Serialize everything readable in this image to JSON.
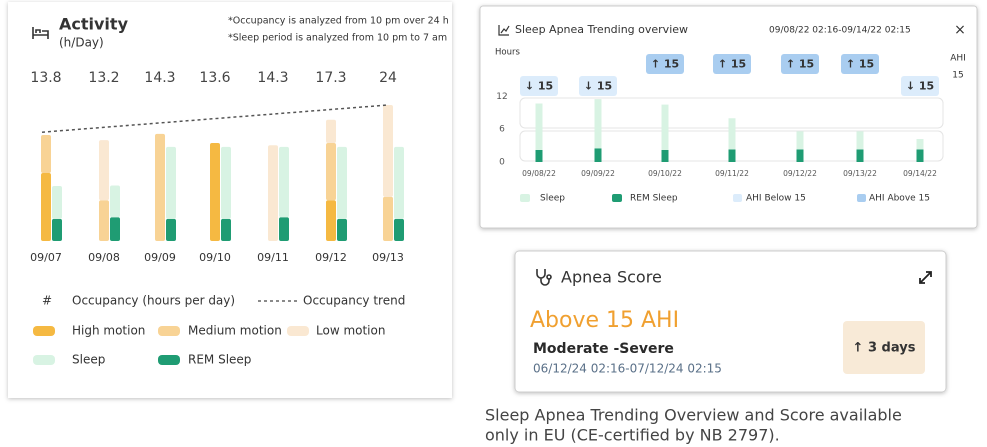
{
  "activity": {
    "title": "Activity",
    "subtitle": "(h/Day)",
    "notes": [
      "*Occupancy is analyzed from 10 pm over 24 h",
      "*Sleep period is analyzed from 10 pm to 7 am"
    ],
    "categories": [
      "09/07",
      "09/08",
      "09/09",
      "09/10",
      "09/11",
      "09/12",
      "09/13"
    ],
    "occupancy": {
      "marker": "#",
      "name": "Occupancy (hours per day)",
      "values": [
        13.8,
        13.2,
        14.3,
        13.6,
        14.3,
        17.3,
        24
      ]
    },
    "trend": {
      "name": "Occupancy trend",
      "values": [
        19.2,
        24
      ]
    },
    "ylim": [
      0,
      24
    ],
    "series": [
      {
        "name": "High motion",
        "stack": "occupancy",
        "color": "#f5b942",
        "values": [
          12.0,
          0,
          0,
          17.3,
          0,
          7.2,
          0
        ]
      },
      {
        "name": "Medium motion",
        "stack": "occupancy",
        "color": "#f8d395",
        "values": [
          6.7,
          7.2,
          18.9,
          0,
          0,
          10.1,
          7.8
        ]
      },
      {
        "name": "Low motion",
        "stack": "occupancy",
        "color": "#fae8d2",
        "values": [
          0,
          10.6,
          0,
          0,
          16.9,
          4.1,
          16.2
        ]
      },
      {
        "name": "REM Sleep",
        "stack": "sleep",
        "color": "#1f9c73",
        "values": [
          3.9,
          4.2,
          3.9,
          3.9,
          4.2,
          3.9,
          3.9
        ]
      },
      {
        "name": "Sleep",
        "stack": "sleep",
        "color": "#d8f3e3",
        "values": [
          5.8,
          5.6,
          12.7,
          12.7,
          12.4,
          12.7,
          12.7
        ]
      }
    ]
  },
  "trending": {
    "title": "Sleep Apnea Trending overview",
    "range": "09/08/22 02:16-09/14/22 02:15",
    "close": "×",
    "y_label": "Hours",
    "ahi_label": "AHI",
    "ahi_threshold": 15,
    "categories": [
      "09/08/22",
      "09/09/22",
      "09/10/22",
      "09/11/22",
      "09/12/22",
      "09/13/22",
      "09/14/22"
    ],
    "ylim": [
      0,
      15
    ],
    "yticks": [
      0,
      6,
      12
    ],
    "series": [
      {
        "name": "REM Sleep",
        "color": "#1f9c73",
        "values": [
          2.2,
          2.5,
          2.2,
          2.3,
          2.3,
          2.3,
          2.3
        ]
      },
      {
        "name": "Sleep",
        "color": "#d8f3e3",
        "values": [
          8.5,
          9.0,
          8.3,
          5.7,
          3.3,
          3.3,
          1.9
        ]
      }
    ],
    "ahi": [
      {
        "label": "↓ 15",
        "level": "below"
      },
      {
        "label": "↓ 15",
        "level": "below"
      },
      {
        "label": "↑ 15",
        "level": "above"
      },
      {
        "label": "↑ 15",
        "level": "above"
      },
      {
        "label": "↑ 15",
        "level": "above"
      },
      {
        "label": "↑ 15",
        "level": "above"
      },
      {
        "label": "↓ 15",
        "level": "below"
      }
    ],
    "ahi_legend": [
      {
        "name": "AHI Below 15",
        "level": "below",
        "color": "#dcecfb"
      },
      {
        "name": "AHI Above 15",
        "level": "above",
        "color": "#a9cdf0"
      }
    ]
  },
  "score": {
    "title": "Apnea Score",
    "result": "Above 15 AHI",
    "severity": "Moderate -Severe",
    "range": "06/12/24 02:16-07/12/24 02:15",
    "trend": "↑ 3 days"
  },
  "caption": [
    "Sleep Apnea Trending Overview and Score available",
    "only in EU (CE-certified by NB 2797)."
  ]
}
